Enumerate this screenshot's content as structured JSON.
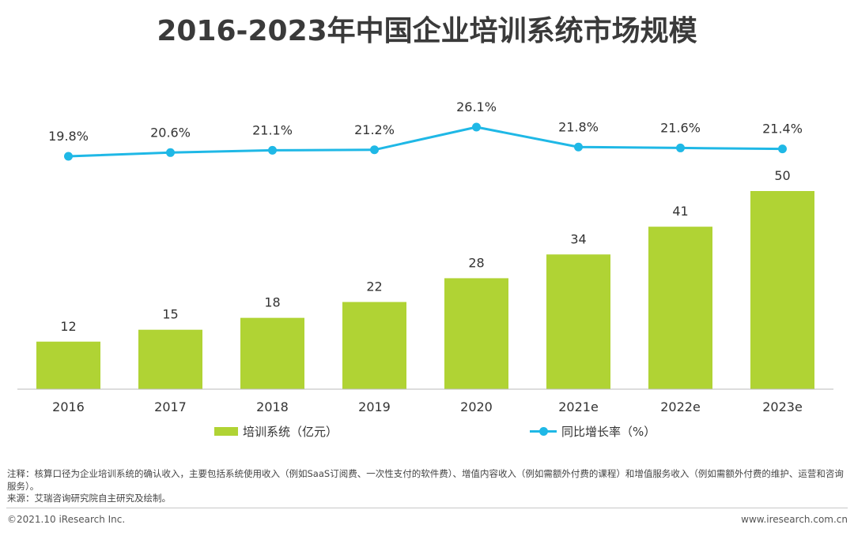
{
  "title": "2016-2023年中国企业培训系统市场规模",
  "colors": {
    "bar": "#b0d334",
    "line": "#1fb8e6",
    "axis": "#bbbbbb",
    "text": "#333333"
  },
  "chart_data": {
    "type": "bar",
    "categories": [
      "2016",
      "2017",
      "2018",
      "2019",
      "2020",
      "2021e",
      "2022e",
      "2023e"
    ],
    "series": [
      {
        "name": "培训系统（亿元）",
        "kind": "bar",
        "values": [
          12,
          15,
          18,
          22,
          28,
          34,
          41,
          50
        ],
        "labels": [
          "12",
          "15",
          "18",
          "22",
          "28",
          "34",
          "41",
          "50"
        ]
      },
      {
        "name": "同比增长率（%）",
        "kind": "line",
        "values": [
          19.8,
          20.6,
          21.1,
          21.2,
          26.1,
          21.8,
          21.6,
          21.4
        ],
        "labels": [
          "19.8%",
          "20.6%",
          "21.1%",
          "21.2%",
          "26.1%",
          "21.8%",
          "21.6%",
          "21.4%"
        ]
      }
    ],
    "ylim_bar": [
      0,
      50
    ],
    "ylim_line": [
      19.8,
      26.1
    ],
    "grid": false,
    "legend_position": "bottom"
  },
  "legend": {
    "bar_label": "培训系统（亿元）",
    "line_label": "同比增长率（%）"
  },
  "notes": {
    "note": "注释：核算口径为企业培训系统的确认收入，主要包括系统使用收入（例如SaaS订阅费、一次性支付的软件费）、增值内容收入（例如需额外付费的课程）和增值服务收入（例如需额外付费的维护、运营和咨询服务）。",
    "source": "来源：艾瑞咨询研究院自主研究及绘制。"
  },
  "footer": {
    "copyright": "©2021.10 iResearch Inc.",
    "website": "www.iresearch.com.cn"
  }
}
